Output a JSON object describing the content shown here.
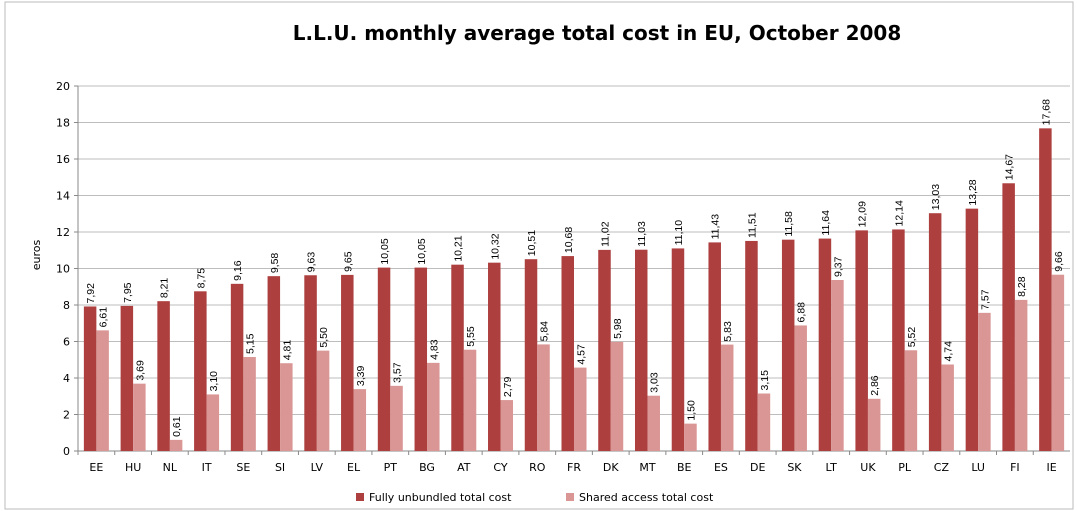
{
  "chart_data": {
    "type": "bar",
    "title": "L.L.U. monthly average total cost in EU, October 2008",
    "ylabel": "euros",
    "categories": [
      "EE",
      "HU",
      "NL",
      "IT",
      "SE",
      "SI",
      "LV",
      "EL",
      "PT",
      "BG",
      "AT",
      "CY",
      "RO",
      "FR",
      "DK",
      "MT",
      "BE",
      "ES",
      "DE",
      "SK",
      "LT",
      "UK",
      "PL",
      "CZ",
      "LU",
      "FI",
      "IE"
    ],
    "series": [
      {
        "name": "Fully unbundled total cost",
        "color": "#ad3f3f",
        "values": [
          7.92,
          7.95,
          8.21,
          8.75,
          9.16,
          9.58,
          9.63,
          9.65,
          10.05,
          10.05,
          10.21,
          10.32,
          10.51,
          10.68,
          11.02,
          11.03,
          11.1,
          11.43,
          11.51,
          11.58,
          11.64,
          12.09,
          12.14,
          13.03,
          13.28,
          14.67,
          17.68
        ],
        "value_labels": [
          "7,92",
          "7,95",
          "8,21",
          "8,75",
          "9,16",
          "9,58",
          "9,63",
          "9,65",
          "10,05",
          "10,05",
          "10,21",
          "10,32",
          "10,51",
          "10,68",
          "11,02",
          "11,03",
          "11,10",
          "11,43",
          "11,51",
          "11,58",
          "11,64",
          "12,09",
          "12,14",
          "13,03",
          "13,28",
          "14,67",
          "17,68"
        ]
      },
      {
        "name": "Shared access total cost",
        "color": "#d99694",
        "values": [
          6.61,
          3.69,
          0.61,
          3.1,
          5.15,
          4.81,
          5.5,
          3.39,
          3.57,
          4.83,
          5.55,
          2.79,
          5.84,
          4.57,
          5.98,
          3.03,
          1.5,
          5.83,
          3.15,
          6.88,
          9.37,
          2.86,
          5.52,
          4.74,
          7.57,
          8.28,
          9.66
        ],
        "value_labels": [
          "6,61",
          "3,69",
          "0,61",
          "3,10",
          "5,15",
          "4,81",
          "5,50",
          "3,39",
          "3,57",
          "4,83",
          "5,55",
          "2,79",
          "5,84",
          "4,57",
          "5,98",
          "3,03",
          "1,50",
          "5,83",
          "3,15",
          "6,88",
          "9,37",
          "2,86",
          "5,52",
          "4,74",
          "7,57",
          "8,28",
          "9,66"
        ]
      }
    ],
    "ylim": [
      0,
      20
    ],
    "yticks": [
      0,
      2,
      4,
      6,
      8,
      10,
      12,
      14,
      16,
      18,
      20
    ],
    "grid": true,
    "legend": "bottom"
  }
}
